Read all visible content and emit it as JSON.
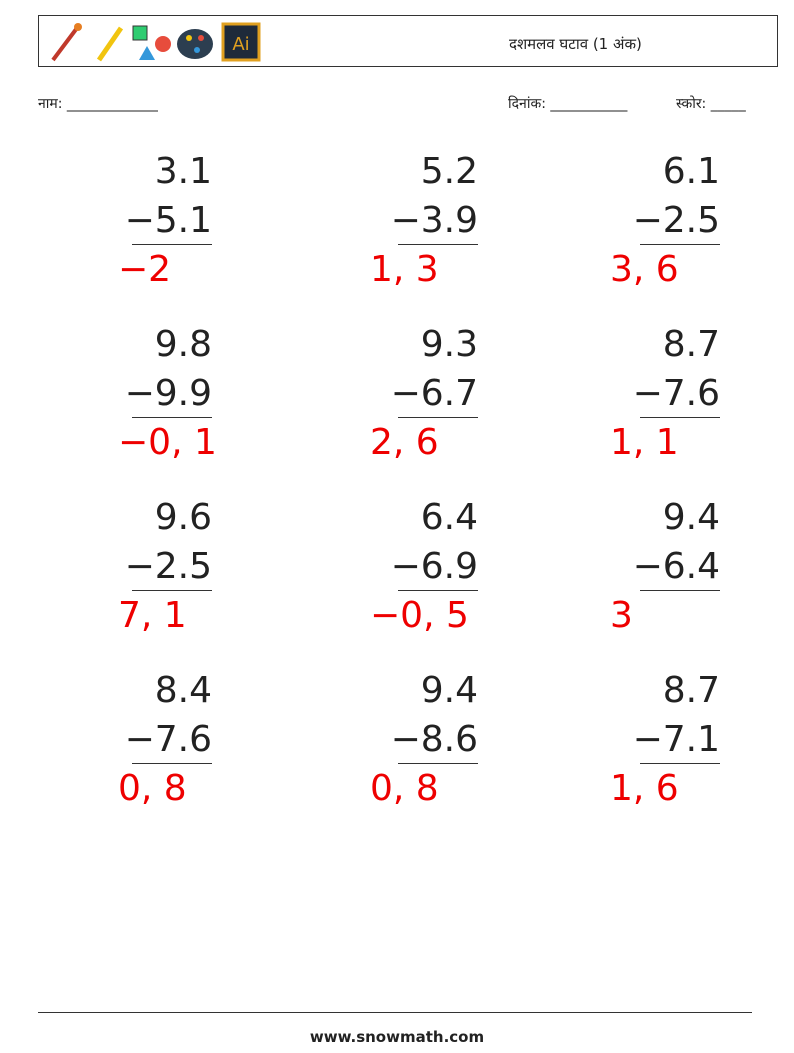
{
  "header": {
    "title": "दशमलव घटाव (1 अंक)"
  },
  "fields": {
    "name": "नाम: _____________",
    "date": "दिनांक: ___________",
    "score": "स्कोर: _____"
  },
  "problems": [
    {
      "top": "3.1",
      "bottom": "−5.1",
      "answer": "−2"
    },
    {
      "top": "5.2",
      "bottom": "−3.9",
      "answer": "1, 3"
    },
    {
      "top": "6.1",
      "bottom": "−2.5",
      "answer": "3, 6"
    },
    {
      "top": "9.8",
      "bottom": "−9.9",
      "answer": "−0, 1"
    },
    {
      "top": "9.3",
      "bottom": "−6.7",
      "answer": "2, 6"
    },
    {
      "top": "8.7",
      "bottom": "−7.6",
      "answer": "1, 1"
    },
    {
      "top": "9.6",
      "bottom": "−2.5",
      "answer": "7, 1"
    },
    {
      "top": "6.4",
      "bottom": "−6.9",
      "answer": "−0, 5"
    },
    {
      "top": "9.4",
      "bottom": "−6.4",
      "answer": "3"
    },
    {
      "top": "8.4",
      "bottom": "−7.6",
      "answer": "0, 8"
    },
    {
      "top": "9.4",
      "bottom": "−8.6",
      "answer": "0, 8"
    },
    {
      "top": "8.7",
      "bottom": "−7.1",
      "answer": "1, 6"
    }
  ],
  "footer": {
    "site": "www.snowmath.com"
  }
}
